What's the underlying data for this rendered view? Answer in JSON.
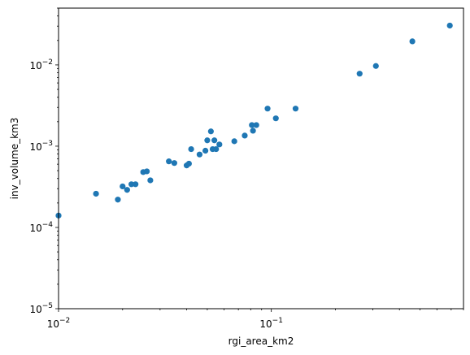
{
  "chart_data": {
    "type": "scatter",
    "xlabel": "rgi_area_km2",
    "ylabel": "inv_volume_km3",
    "xscale": "log",
    "yscale": "log",
    "xlim": [
      0.01,
      0.8
    ],
    "ylim": [
      1e-05,
      0.05
    ],
    "grid": false,
    "marker_color": "#1f77b4",
    "x_ticks": [
      {
        "value": 0.01,
        "base": "10",
        "exp": "−2"
      },
      {
        "value": 0.1,
        "base": "10",
        "exp": "−1"
      }
    ],
    "y_ticks": [
      {
        "value": 1e-05,
        "base": "10",
        "exp": "−5"
      },
      {
        "value": 0.0001,
        "base": "10",
        "exp": "−4"
      },
      {
        "value": 0.001,
        "base": "10",
        "exp": "−3"
      },
      {
        "value": 0.01,
        "base": "10",
        "exp": "−2"
      }
    ],
    "points": [
      {
        "x": 0.01,
        "y": 0.00014
      },
      {
        "x": 0.015,
        "y": 0.00026
      },
      {
        "x": 0.019,
        "y": 0.00022
      },
      {
        "x": 0.02,
        "y": 0.00032
      },
      {
        "x": 0.021,
        "y": 0.00029
      },
      {
        "x": 0.022,
        "y": 0.00034
      },
      {
        "x": 0.023,
        "y": 0.00034
      },
      {
        "x": 0.025,
        "y": 0.00048
      },
      {
        "x": 0.026,
        "y": 0.00049
      },
      {
        "x": 0.027,
        "y": 0.00038
      },
      {
        "x": 0.033,
        "y": 0.00065
      },
      {
        "x": 0.035,
        "y": 0.00062
      },
      {
        "x": 0.04,
        "y": 0.00058
      },
      {
        "x": 0.041,
        "y": 0.00061
      },
      {
        "x": 0.042,
        "y": 0.00092
      },
      {
        "x": 0.046,
        "y": 0.00079
      },
      {
        "x": 0.049,
        "y": 0.00088
      },
      {
        "x": 0.05,
        "y": 0.00118
      },
      {
        "x": 0.052,
        "y": 0.00152
      },
      {
        "x": 0.053,
        "y": 0.00092
      },
      {
        "x": 0.054,
        "y": 0.00118
      },
      {
        "x": 0.055,
        "y": 0.00092
      },
      {
        "x": 0.057,
        "y": 0.00105
      },
      {
        "x": 0.067,
        "y": 0.00115
      },
      {
        "x": 0.075,
        "y": 0.00135
      },
      {
        "x": 0.081,
        "y": 0.00182
      },
      {
        "x": 0.082,
        "y": 0.00155
      },
      {
        "x": 0.085,
        "y": 0.00182
      },
      {
        "x": 0.096,
        "y": 0.0029
      },
      {
        "x": 0.105,
        "y": 0.0022
      },
      {
        "x": 0.13,
        "y": 0.0029
      },
      {
        "x": 0.26,
        "y": 0.0078
      },
      {
        "x": 0.31,
        "y": 0.0097
      },
      {
        "x": 0.46,
        "y": 0.0195
      },
      {
        "x": 0.69,
        "y": 0.0305
      }
    ]
  }
}
